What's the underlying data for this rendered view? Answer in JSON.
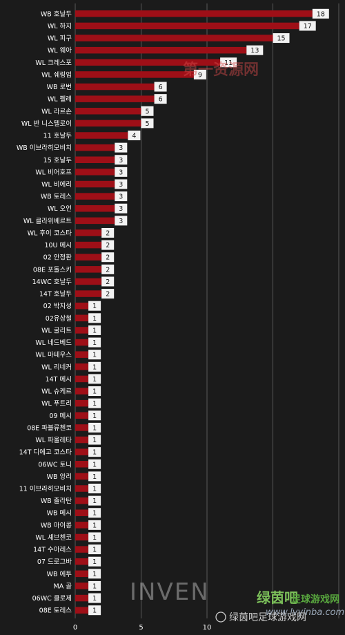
{
  "chart_data": {
    "type": "bar",
    "orientation": "horizontal",
    "categories": [
      "WB 호날두",
      "WL 하지",
      "WL 피구",
      "WL 웨아",
      "WL 크레스포",
      "WL 쉐링엄",
      "WB 로번",
      "WL 펠레",
      "WL 라르손",
      "WL 반 니스텔로이",
      "11 호날두",
      "WB 이브라히모비치",
      "15 호날두",
      "WL 비어호프",
      "WL 비에리",
      "WB 토레스",
      "WL 오언",
      "WL 클라위베르트",
      "WL 후이 코스타",
      "10U 메시",
      "02 안정환",
      "08E 포돌스키",
      "14WC 호날두",
      "14T 호날두",
      "02 박지성",
      "02유상철",
      "WL 굴리트",
      "WL 네드베드",
      "WL 마테우스",
      "WL 리네커",
      "14T 메시",
      "WL 슈케르",
      "WL 푸트리",
      "09 메시",
      "08E 파블류첸코",
      "WL 파울레타",
      "14T 디에고 코스타",
      "06WC 토니",
      "WB 앙리",
      "11 이브라히모비치",
      "WB 졸라탄",
      "WB 메시",
      "WB 마이콩",
      "WL 셰브첸코",
      "14T 수아레스",
      "07 드로그바",
      "WB 에투",
      "MA 골",
      "06WC 클로제",
      "08E 토레스"
    ],
    "values": [
      18,
      17,
      15,
      13,
      11,
      9,
      6,
      6,
      5,
      5,
      4,
      3,
      3,
      3,
      3,
      3,
      3,
      3,
      2,
      2,
      2,
      2,
      2,
      2,
      1,
      1,
      1,
      1,
      1,
      1,
      1,
      1,
      1,
      1,
      1,
      1,
      1,
      1,
      1,
      1,
      1,
      1,
      1,
      1,
      1,
      1,
      1,
      1,
      1,
      1
    ],
    "x_ticks": [
      "0",
      "5",
      "10",
      "",
      ""
    ],
    "xlim": [
      0,
      20
    ],
    "grid": true,
    "bar_color": "#9e0f17",
    "background": "#1b1b1b"
  },
  "watermarks": {
    "top": "第一资源网",
    "center": "INVEN",
    "logo_cn": "绿茵吧",
    "logo_sub": "足球游戏网",
    "site": "www.lvyinba.com",
    "wechat": "绿茵吧足球游戏网"
  }
}
